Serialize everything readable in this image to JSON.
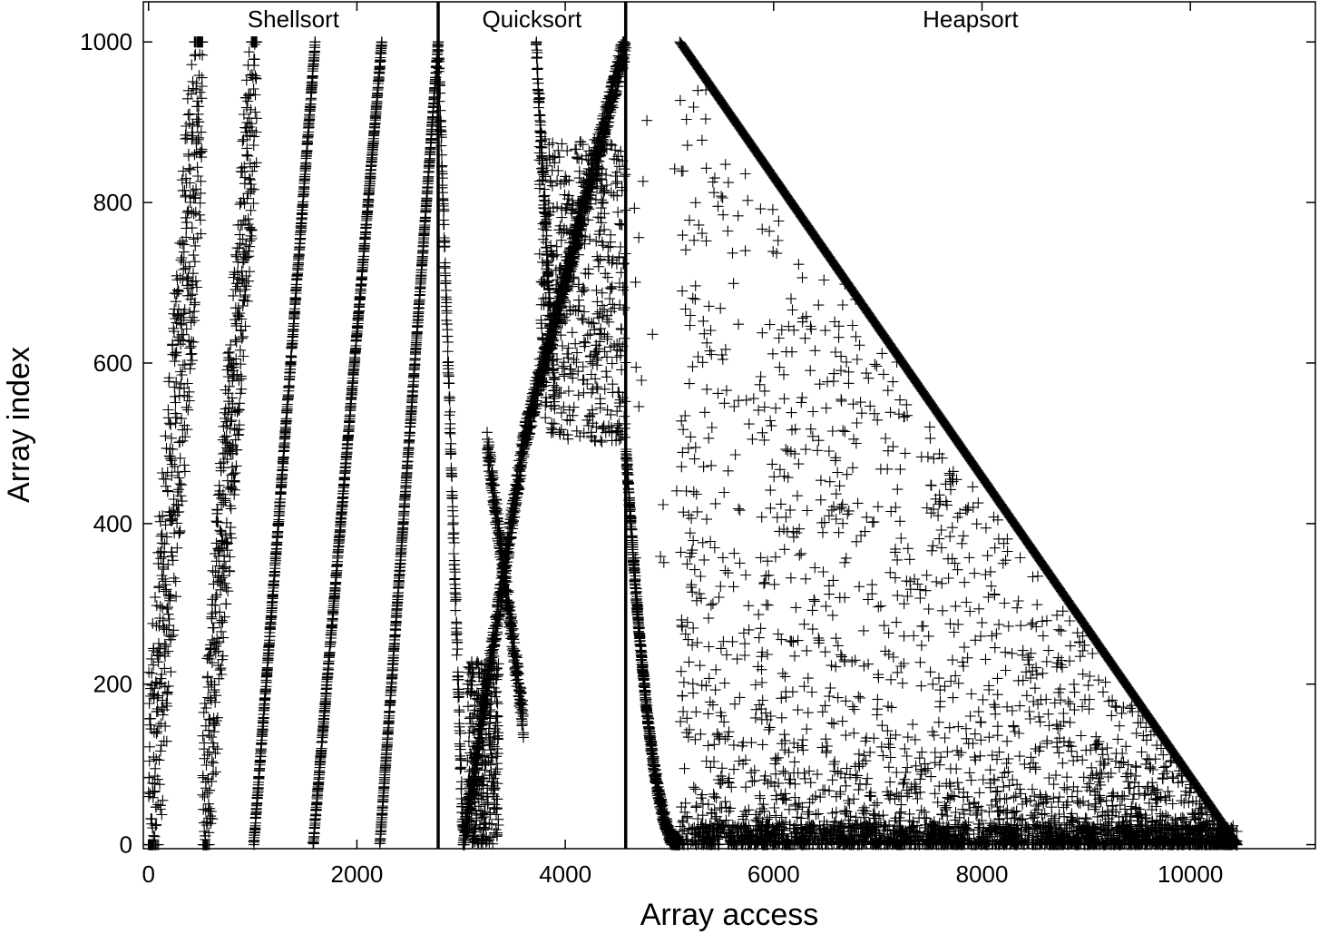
{
  "chart_data": {
    "type": "scatter",
    "marker": "plus",
    "xlabel": "Array access",
    "ylabel": "Array index",
    "xlim": [
      -50,
      11200
    ],
    "ylim": [
      -5,
      1050
    ],
    "xticks": [
      0,
      2000,
      4000,
      6000,
      8000,
      10000
    ],
    "xtick_labels": [
      "0",
      "2000",
      "4000",
      "6000",
      "8000",
      "10000"
    ],
    "yticks": [
      0,
      200,
      400,
      600,
      800,
      1000
    ],
    "ytick_labels": [
      "0",
      "200",
      "400",
      "600",
      "800",
      "1000"
    ],
    "grid": false,
    "legend": "none",
    "colors": {
      "marker": "#000000",
      "axis": "#000000",
      "divider": "#000000"
    },
    "sections": [
      {
        "label": "Shellsort",
        "x_start": 0,
        "x_end": 2780
      },
      {
        "label": "Quicksort",
        "x_start": 2780,
        "x_end": 4580
      },
      {
        "label": "Heapsort",
        "x_start": 4580,
        "x_end": 11200
      }
    ],
    "dividers": [
      2780,
      4580
    ],
    "shellsort_passes": [
      {
        "x_start": 0,
        "x_end": 520,
        "scatter_band": 350
      },
      {
        "x_start": 520,
        "x_end": 1040,
        "scatter_band": 260
      },
      {
        "x_start": 1010,
        "x_end": 1600,
        "scatter_band": 10
      },
      {
        "x_start": 1580,
        "x_end": 2240,
        "scatter_band": 8
      },
      {
        "x_start": 2220,
        "x_end": 2780,
        "scatter_band": 6
      }
    ],
    "quicksort_segments": [
      {
        "x_start": 2780,
        "x_end": 3020,
        "y_start": 1000,
        "y_end": 0
      },
      {
        "x_start": 3020,
        "x_end": 3600,
        "y_start": 0,
        "y_end": 500
      },
      {
        "x_start": 3250,
        "x_end": 3600,
        "y_start": 500,
        "y_end": 150
      },
      {
        "x_start": 3600,
        "x_end": 4580,
        "y_start": 500,
        "y_end": 1000
      },
      {
        "x_start": 3720,
        "x_end": 3900,
        "y_start": 1000,
        "y_end": 550
      }
    ],
    "heapsort": {
      "x_start": 4580,
      "build_heap_end": 5100,
      "diagonal": {
        "x_start": 5100,
        "y_start": 1000,
        "x_end": 10450,
        "y_end": 0
      }
    }
  }
}
